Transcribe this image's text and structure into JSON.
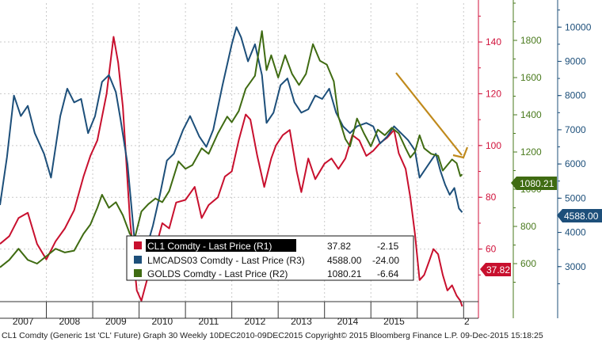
{
  "chart_data": {
    "type": "line",
    "x_axis": {
      "labels": [
        "2007",
        "2008",
        "2009",
        "2010",
        "2011",
        "2012",
        "2013",
        "2014",
        "2015",
        "2"
      ]
    },
    "axes": [
      {
        "id": "R1",
        "min": 40,
        "max": 155,
        "ticks": [
          60,
          80,
          100,
          120,
          140
        ],
        "color": "#d0123b"
      },
      {
        "id": "R2",
        "min": 400,
        "max": 2000,
        "ticks": [
          600,
          800,
          1000,
          1200,
          1400,
          1600,
          1800
        ],
        "color": "#4a7a1e"
      },
      {
        "id": "R3",
        "min": 2000,
        "max": 10700,
        "ticks": [
          3000,
          4000,
          5000,
          6000,
          7000,
          8000,
          9000,
          10000
        ],
        "color": "#1d4f7a"
      }
    ],
    "series": [
      {
        "name": "CL1 Comdty - Last Price (R1)",
        "axis": "R1",
        "color": "#c8102e",
        "last_value": "37.82",
        "change": "-2.15",
        "points": [
          [
            2006.0,
            62
          ],
          [
            2006.2,
            65
          ],
          [
            2006.4,
            72
          ],
          [
            2006.6,
            74
          ],
          [
            2006.8,
            62
          ],
          [
            2007.0,
            56
          ],
          [
            2007.2,
            63
          ],
          [
            2007.4,
            68
          ],
          [
            2007.6,
            75
          ],
          [
            2007.8,
            88
          ],
          [
            2007.95,
            96
          ],
          [
            2008.1,
            102
          ],
          [
            2008.3,
            120
          ],
          [
            2008.45,
            142
          ],
          [
            2008.55,
            132
          ],
          [
            2008.65,
            115
          ],
          [
            2008.8,
            72
          ],
          [
            2008.95,
            44
          ],
          [
            2009.05,
            40
          ],
          [
            2009.2,
            50
          ],
          [
            2009.35,
            60
          ],
          [
            2009.5,
            70
          ],
          [
            2009.65,
            68
          ],
          [
            2009.8,
            78
          ],
          [
            2010.0,
            79
          ],
          [
            2010.2,
            84
          ],
          [
            2010.35,
            72
          ],
          [
            2010.5,
            77
          ],
          [
            2010.7,
            80
          ],
          [
            2010.85,
            88
          ],
          [
            2011.0,
            90
          ],
          [
            2011.15,
            102
          ],
          [
            2011.3,
            112
          ],
          [
            2011.4,
            110
          ],
          [
            2011.55,
            96
          ],
          [
            2011.7,
            84
          ],
          [
            2011.85,
            95
          ],
          [
            2011.95,
            100
          ],
          [
            2012.1,
            104
          ],
          [
            2012.25,
            106
          ],
          [
            2012.4,
            90
          ],
          [
            2012.5,
            82
          ],
          [
            2012.65,
            95
          ],
          [
            2012.8,
            87
          ],
          [
            2013.0,
            93
          ],
          [
            2013.15,
            95
          ],
          [
            2013.3,
            91
          ],
          [
            2013.45,
            95
          ],
          [
            2013.6,
            104
          ],
          [
            2013.75,
            102
          ],
          [
            2013.9,
            96
          ],
          [
            2014.05,
            98
          ],
          [
            2014.2,
            101
          ],
          [
            2014.35,
            103
          ],
          [
            2014.5,
            106
          ],
          [
            2014.6,
            97
          ],
          [
            2014.75,
            91
          ],
          [
            2014.85,
            80
          ],
          [
            2014.95,
            66
          ],
          [
            2015.05,
            48
          ],
          [
            2015.15,
            50
          ],
          [
            2015.25,
            55
          ],
          [
            2015.35,
            60
          ],
          [
            2015.45,
            58
          ],
          [
            2015.55,
            50
          ],
          [
            2015.65,
            44
          ],
          [
            2015.75,
            46
          ],
          [
            2015.85,
            42
          ],
          [
            2015.93,
            40
          ],
          [
            2015.97,
            37.82
          ]
        ]
      },
      {
        "name": "LMCADS03 Comdty - Last Price (R3)",
        "axis": "R3",
        "color": "#1d4f7a",
        "last_value": "4588.00",
        "change": "-24.00",
        "points": [
          [
            2006.0,
            4800
          ],
          [
            2006.15,
            6200
          ],
          [
            2006.3,
            8000
          ],
          [
            2006.45,
            7400
          ],
          [
            2006.6,
            7700
          ],
          [
            2006.75,
            6900
          ],
          [
            2006.95,
            6300
          ],
          [
            2007.1,
            5600
          ],
          [
            2007.3,
            7400
          ],
          [
            2007.45,
            8200
          ],
          [
            2007.6,
            7800
          ],
          [
            2007.75,
            7900
          ],
          [
            2007.9,
            6900
          ],
          [
            2008.05,
            7400
          ],
          [
            2008.2,
            8400
          ],
          [
            2008.35,
            8600
          ],
          [
            2008.5,
            8100
          ],
          [
            2008.6,
            7300
          ],
          [
            2008.75,
            6000
          ],
          [
            2008.9,
            3800
          ],
          [
            2009.0,
            3100
          ],
          [
            2009.15,
            3500
          ],
          [
            2009.3,
            4200
          ],
          [
            2009.45,
            5100
          ],
          [
            2009.6,
            6100
          ],
          [
            2009.75,
            6300
          ],
          [
            2009.95,
            7000
          ],
          [
            2010.1,
            7400
          ],
          [
            2010.3,
            6800
          ],
          [
            2010.45,
            6500
          ],
          [
            2010.6,
            7000
          ],
          [
            2010.8,
            8300
          ],
          [
            2011.0,
            9500
          ],
          [
            2011.1,
            10000
          ],
          [
            2011.2,
            9700
          ],
          [
            2011.35,
            9000
          ],
          [
            2011.5,
            9500
          ],
          [
            2011.65,
            8600
          ],
          [
            2011.75,
            7200
          ],
          [
            2011.9,
            7500
          ],
          [
            2012.05,
            8300
          ],
          [
            2012.2,
            8500
          ],
          [
            2012.35,
            7800
          ],
          [
            2012.5,
            7500
          ],
          [
            2012.65,
            7600
          ],
          [
            2012.8,
            8000
          ],
          [
            2012.95,
            7900
          ],
          [
            2013.1,
            8200
          ],
          [
            2013.25,
            7500
          ],
          [
            2013.4,
            7100
          ],
          [
            2013.55,
            6900
          ],
          [
            2013.7,
            7100
          ],
          [
            2013.9,
            7200
          ],
          [
            2014.05,
            7100
          ],
          [
            2014.2,
            6600
          ],
          [
            2014.35,
            6800
          ],
          [
            2014.5,
            7100
          ],
          [
            2014.65,
            6900
          ],
          [
            2014.8,
            6700
          ],
          [
            2014.95,
            6400
          ],
          [
            2015.05,
            5600
          ],
          [
            2015.15,
            5800
          ],
          [
            2015.3,
            6100
          ],
          [
            2015.4,
            6300
          ],
          [
            2015.5,
            5800
          ],
          [
            2015.6,
            5400
          ],
          [
            2015.7,
            5100
          ],
          [
            2015.8,
            5300
          ],
          [
            2015.9,
            4700
          ],
          [
            2015.97,
            4588
          ]
        ]
      },
      {
        "name": "GOLDS Comdty - Last Price (R2)",
        "axis": "R2",
        "color": "#3f6b12",
        "last_value": "1080.21",
        "change": "-6.64",
        "points": [
          [
            2006.0,
            580
          ],
          [
            2006.2,
            620
          ],
          [
            2006.4,
            680
          ],
          [
            2006.6,
            620
          ],
          [
            2006.8,
            600
          ],
          [
            2007.0,
            640
          ],
          [
            2007.2,
            680
          ],
          [
            2007.4,
            660
          ],
          [
            2007.6,
            670
          ],
          [
            2007.8,
            760
          ],
          [
            2007.95,
            810
          ],
          [
            2008.1,
            900
          ],
          [
            2008.2,
            970
          ],
          [
            2008.35,
            900
          ],
          [
            2008.5,
            930
          ],
          [
            2008.65,
            860
          ],
          [
            2008.8,
            760
          ],
          [
            2008.9,
            730
          ],
          [
            2009.05,
            880
          ],
          [
            2009.2,
            920
          ],
          [
            2009.35,
            950
          ],
          [
            2009.5,
            930
          ],
          [
            2009.65,
            990
          ],
          [
            2009.85,
            1150
          ],
          [
            2010.0,
            1110
          ],
          [
            2010.15,
            1130
          ],
          [
            2010.35,
            1220
          ],
          [
            2010.5,
            1190
          ],
          [
            2010.7,
            1300
          ],
          [
            2010.9,
            1390
          ],
          [
            2011.0,
            1360
          ],
          [
            2011.15,
            1420
          ],
          [
            2011.3,
            1540
          ],
          [
            2011.5,
            1610
          ],
          [
            2011.65,
            1850
          ],
          [
            2011.75,
            1640
          ],
          [
            2011.85,
            1720
          ],
          [
            2012.0,
            1600
          ],
          [
            2012.15,
            1720
          ],
          [
            2012.3,
            1620
          ],
          [
            2012.45,
            1560
          ],
          [
            2012.6,
            1620
          ],
          [
            2012.75,
            1780
          ],
          [
            2012.9,
            1690
          ],
          [
            2013.05,
            1670
          ],
          [
            2013.2,
            1580
          ],
          [
            2013.3,
            1390
          ],
          [
            2013.45,
            1270
          ],
          [
            2013.55,
            1230
          ],
          [
            2013.7,
            1380
          ],
          [
            2013.85,
            1300
          ],
          [
            2014.0,
            1230
          ],
          [
            2014.15,
            1320
          ],
          [
            2014.3,
            1290
          ],
          [
            2014.45,
            1330
          ],
          [
            2014.6,
            1300
          ],
          [
            2014.75,
            1220
          ],
          [
            2014.85,
            1170
          ],
          [
            2014.95,
            1200
          ],
          [
            2015.05,
            1290
          ],
          [
            2015.15,
            1220
          ],
          [
            2015.3,
            1190
          ],
          [
            2015.45,
            1180
          ],
          [
            2015.55,
            1100
          ],
          [
            2015.65,
            1130
          ],
          [
            2015.75,
            1160
          ],
          [
            2015.85,
            1140
          ],
          [
            2015.93,
            1070
          ],
          [
            2015.97,
            1080.21
          ]
        ]
      }
    ]
  },
  "tags": {
    "gold": "1080.21",
    "copper": "4588.00",
    "oil": "37.82"
  },
  "footer": "CL1 Comdty (Generic 1st 'CL' Future) Graph 30  Weekly 10DEC2010-09DEC2015  Copyright© 2015 Bloomberg Finance L.P.   09-Dec-2015 15:18:25"
}
